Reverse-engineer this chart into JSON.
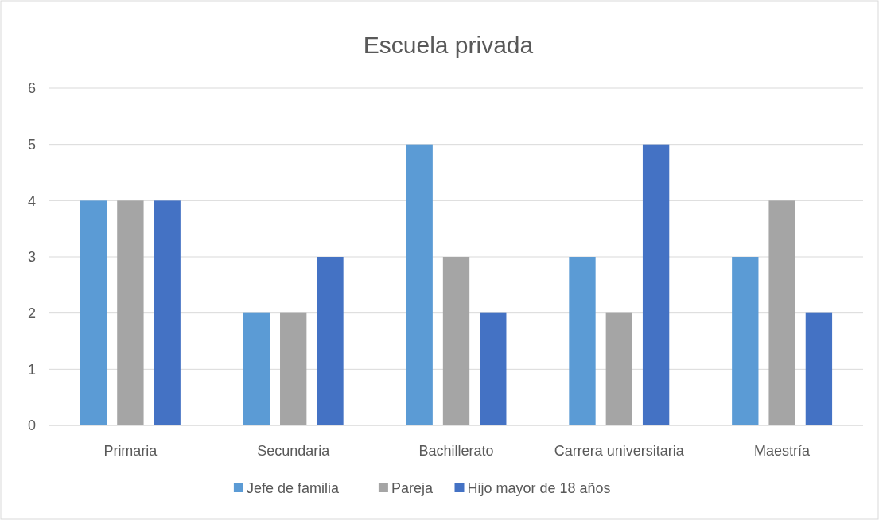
{
  "chart_data": {
    "type": "bar",
    "title": "Escuela privada",
    "categories": [
      "Primaria",
      "Secundaria",
      "Bachillerato",
      "Carrera universitaria",
      "Maestría"
    ],
    "series": [
      {
        "name": "Jefe de familia",
        "color": "#5b9bd5",
        "values": [
          4,
          2,
          5,
          3,
          3
        ]
      },
      {
        "name": "Pareja",
        "color": "#a5a5a5",
        "values": [
          4,
          2,
          3,
          2,
          4
        ]
      },
      {
        "name": "Hijo mayor de 18 años",
        "color": "#4472c4",
        "values": [
          4,
          3,
          2,
          5,
          2
        ]
      }
    ],
    "ylim": [
      0,
      6
    ],
    "yticks": [
      0,
      1,
      2,
      3,
      4,
      5,
      6
    ],
    "grid": "y",
    "legend": "bottom"
  }
}
